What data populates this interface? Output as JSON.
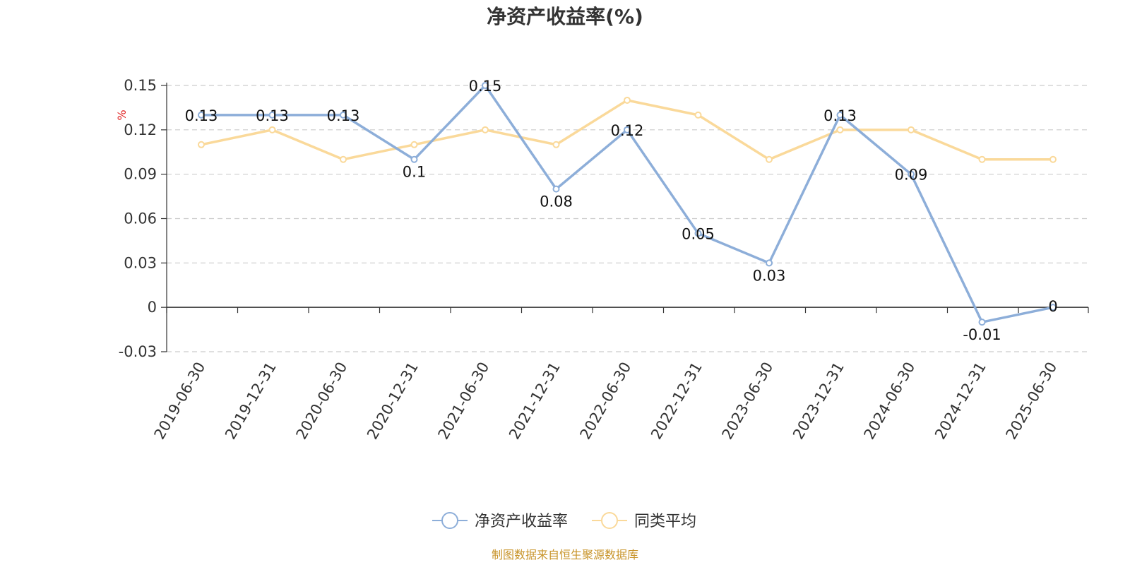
{
  "chart_data": {
    "type": "line",
    "title": "净资产收益率(%)",
    "ylabel": "%",
    "xlabel": "",
    "categories": [
      "2019-06-30",
      "2019-12-31",
      "2020-06-30",
      "2020-12-31",
      "2021-06-30",
      "2021-12-31",
      "2022-06-30",
      "2022-12-31",
      "2023-06-30",
      "2023-12-31",
      "2024-06-30",
      "2024-12-31",
      "2025-06-30"
    ],
    "ylim": [
      -0.03,
      0.15
    ],
    "yticks": [
      "0.15",
      "0.12",
      "0.09",
      "0.06",
      "0.03",
      "0",
      "-0.03"
    ],
    "grid": true,
    "legend_position": "bottom-center",
    "series": [
      {
        "name": "净资产收益率",
        "color": "#8daed9",
        "show_labels": true,
        "values": [
          0.13,
          0.13,
          0.13,
          0.1,
          0.15,
          0.08,
          0.12,
          0.05,
          0.03,
          0.13,
          0.09,
          -0.01,
          0.0
        ],
        "labels": [
          "0.13",
          "0.13",
          "0.13",
          "0.1",
          "0.15",
          "0.08",
          "0.12",
          "0.05",
          "0.03",
          "0.13",
          "0.09",
          "-0.01",
          "0"
        ]
      },
      {
        "name": "同类平均",
        "color": "#fad99a",
        "show_labels": false,
        "values": [
          0.11,
          0.12,
          0.1,
          0.11,
          0.12,
          0.11,
          0.14,
          0.13,
          0.1,
          0.12,
          0.12,
          0.1,
          0.1
        ]
      }
    ]
  },
  "source": "制图数据来自恒生聚源数据库"
}
